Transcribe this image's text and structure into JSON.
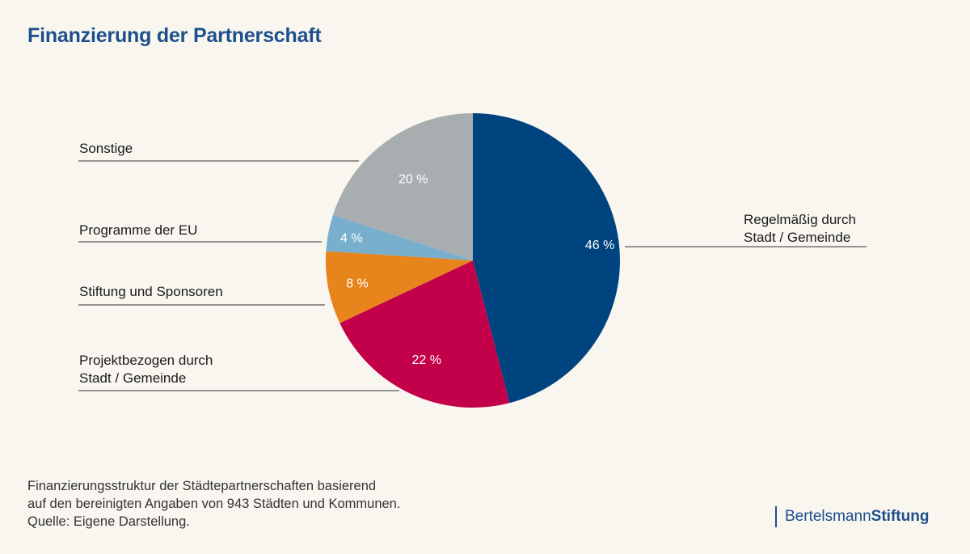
{
  "title": "Finanzierung der Partnerschaft",
  "chart_data": {
    "type": "pie",
    "title": "Finanzierung der Partnerschaft",
    "slices": [
      {
        "label": [
          "Regelmäßig durch",
          "Stadt / Gemeinde"
        ],
        "value": 46,
        "value_label": "46 %",
        "color": "#00447f"
      },
      {
        "label": [
          "Projektbezogen durch",
          "Stadt / Gemeinde"
        ],
        "value": 22,
        "value_label": "22 %",
        "color": "#c3004a"
      },
      {
        "label": [
          "Stiftung und Sponsoren"
        ],
        "value": 8,
        "value_label": "8 %",
        "color": "#e7841b"
      },
      {
        "label": [
          "Programme der EU"
        ],
        "value": 4,
        "value_label": "4 %",
        "color": "#78afcd"
      },
      {
        "label": [
          "Sonstige"
        ],
        "value": 20,
        "value_label": "20 %",
        "color": "#a8adb0"
      }
    ]
  },
  "footnote": [
    "Finanzierungsstruktur der Städtepartnerschaften basierend",
    "auf den bereinigten Angaben von 943 Städten und Kommunen.",
    "Quelle: Eigene Darstellung."
  ],
  "logo": {
    "part1": "Bertelsmann",
    "part2": "Stiftung",
    "color": "#1d4f8c"
  }
}
